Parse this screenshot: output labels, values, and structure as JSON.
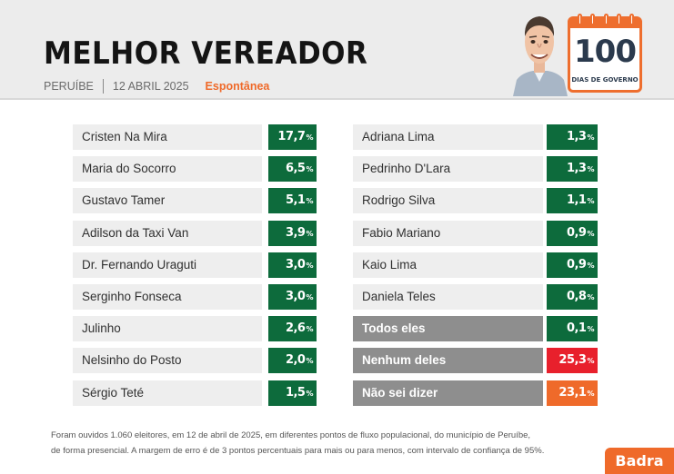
{
  "header": {
    "title": "MELHOR VEREADOR",
    "city": "PERUÍBE",
    "date": "12 ABRIL 2025",
    "type": "Espontânea"
  },
  "badge": {
    "number": "100",
    "caption": "DIAS DE GOVERNO"
  },
  "chart_data": {
    "type": "table",
    "title": "MELHOR VEREADOR",
    "unit": "%",
    "columns": [
      {
        "rows": [
          {
            "name": "Cristen Na Mira",
            "value": 17.7,
            "label": "17,7",
            "kind": "candidate"
          },
          {
            "name": "Maria do Socorro",
            "value": 6.5,
            "label": "6,5",
            "kind": "candidate"
          },
          {
            "name": "Gustavo Tamer",
            "value": 5.1,
            "label": "5,1",
            "kind": "candidate"
          },
          {
            "name": "Adilson da Taxi Van",
            "value": 3.9,
            "label": "3,9",
            "kind": "candidate"
          },
          {
            "name": "Dr. Fernando Uraguti",
            "value": 3.0,
            "label": "3,0",
            "kind": "candidate"
          },
          {
            "name": "Serginho Fonseca",
            "value": 3.0,
            "label": "3,0",
            "kind": "candidate"
          },
          {
            "name": "Julinho",
            "value": 2.6,
            "label": "2,6",
            "kind": "candidate"
          },
          {
            "name": "Nelsinho do Posto",
            "value": 2.0,
            "label": "2,0",
            "kind": "candidate"
          },
          {
            "name": "Sérgio Teté",
            "value": 1.5,
            "label": "1,5",
            "kind": "candidate"
          }
        ]
      },
      {
        "rows": [
          {
            "name": "Adriana Lima",
            "value": 1.3,
            "label": "1,3",
            "kind": "candidate"
          },
          {
            "name": "Pedrinho D'Lara",
            "value": 1.3,
            "label": "1,3",
            "kind": "candidate"
          },
          {
            "name": "Rodrigo Silva",
            "value": 1.1,
            "label": "1,1",
            "kind": "candidate"
          },
          {
            "name": "Fabio Mariano",
            "value": 0.9,
            "label": "0,9",
            "kind": "candidate"
          },
          {
            "name": "Kaio Lima",
            "value": 0.9,
            "label": "0,9",
            "kind": "candidate"
          },
          {
            "name": "Daniela Teles",
            "value": 0.8,
            "label": "0,8",
            "kind": "candidate"
          },
          {
            "name": "Todos eles",
            "value": 0.1,
            "label": "0,1",
            "kind": "all"
          },
          {
            "name": "Nenhum deles",
            "value": 25.3,
            "label": "25,3",
            "kind": "none"
          },
          {
            "name": "Não sei dizer",
            "value": 23.1,
            "label": "23,1",
            "kind": "unknown"
          }
        ]
      }
    ]
  },
  "colors": {
    "candidate": "#0d6b3c",
    "all": "#0d6b3c",
    "none": "#e8202c",
    "unknown": "#ef6a2a",
    "accent": "#ef6a2a"
  },
  "footnote": {
    "line1": "Foram ouvidos 1.060 eleitores, em 12 de abril de 2025, em diferentes pontos de fluxo populacional, do município de Peruíbe,",
    "line2": "de forma presencial. A margem de erro é de 3 pontos percentuais para mais ou para menos, com intervalo de confiança de 95%."
  },
  "brand": "Badra"
}
